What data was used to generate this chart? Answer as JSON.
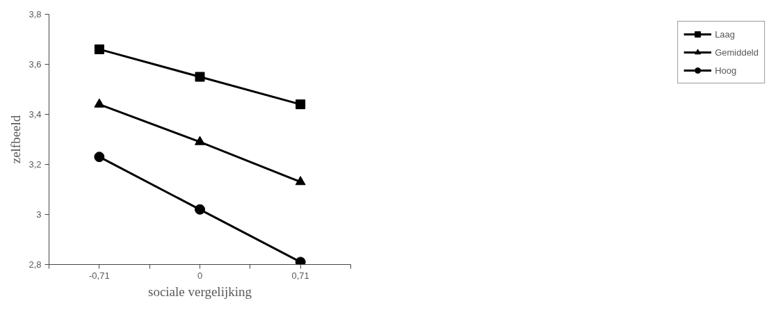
{
  "chart_data": {
    "type": "line",
    "xlabel": "sociale vergelijking",
    "ylabel": "zelfbeeld",
    "categories": [
      "-0,71",
      "0",
      "0,71"
    ],
    "series": [
      {
        "name": "Laag",
        "color": "#000000",
        "marker": "square",
        "values": [
          3.66,
          3.55,
          3.44
        ]
      },
      {
        "name": "Gemiddeld",
        "color": "#000000",
        "marker": "triangle",
        "values": [
          3.44,
          3.29,
          3.13
        ]
      },
      {
        "name": "Hoog",
        "color": "#000000",
        "marker": "circle",
        "values": [
          3.23,
          3.02,
          2.81
        ]
      }
    ],
    "ylim": [
      2.8,
      3.8
    ],
    "yticks": [
      {
        "value": 2.8,
        "label": "2,8"
      },
      3,
      {
        "value": 3.2,
        "label": "3,2"
      },
      {
        "value": 3.4,
        "label": "3,4"
      },
      {
        "value": 3.6,
        "label": "3,6"
      },
      {
        "value": 3.8,
        "label": "3,8"
      }
    ],
    "grid": false,
    "legend": "right",
    "line_style": "solid"
  }
}
